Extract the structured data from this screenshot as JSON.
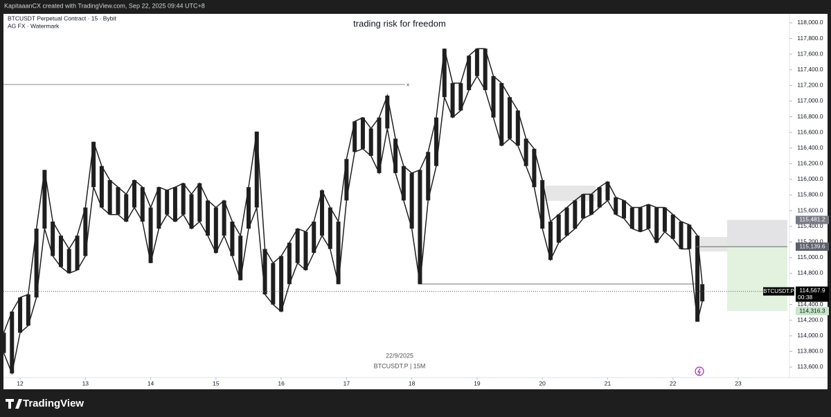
{
  "header": "KapitaaanCX created with TradingView.com, Sep 22, 2025 09:44 UTC+8",
  "footer": {
    "brand": "TradingView"
  },
  "chart_data": {
    "type": "candlestick",
    "title": "trading risk for freedom",
    "symbol": "BTCUSDT Perpetual Contract · 15 · Bybit",
    "indicator": "AG FX · Watermark",
    "watermark_date": "22/9/2025",
    "watermark_symbol": "BTCUSDT.P | 15M",
    "xlim": [
      11.745,
      23.785
    ],
    "xticks": [
      12,
      13,
      14,
      15,
      16,
      17,
      18,
      19,
      20,
      21,
      22,
      23
    ],
    "ylim": [
      113467,
      118115
    ],
    "yticks": [
      {
        "value": 113600,
        "label": "113,600.0"
      },
      {
        "value": 113800,
        "label": "113,800.0"
      },
      {
        "value": 114000,
        "label": "114,000.0"
      },
      {
        "value": 114200,
        "label": "114,200.0"
      },
      {
        "value": 114400,
        "label": "114,400.0"
      },
      {
        "value": 114600,
        "label": "114,600.0"
      },
      {
        "value": 114800,
        "label": "114,800.0"
      },
      {
        "value": 115000,
        "label": "115,000.0"
      },
      {
        "value": 115200,
        "label": "115,200.0"
      },
      {
        "value": 115400,
        "label": "115,400.0"
      },
      {
        "value": 115600,
        "label": "115,600.0"
      },
      {
        "value": 115800,
        "label": "115,800.0"
      },
      {
        "value": 116000,
        "label": "116,000.0"
      },
      {
        "value": 116200,
        "label": "116,200.0"
      },
      {
        "value": 116400,
        "label": "116,400.0"
      },
      {
        "value": 116600,
        "label": "116,600.0"
      },
      {
        "value": 116800,
        "label": "116,800.0"
      },
      {
        "value": 117000,
        "label": "117,000.0"
      },
      {
        "value": 117200,
        "label": "117,200.0"
      },
      {
        "value": 117400,
        "label": "117,400.0"
      },
      {
        "value": 117600,
        "label": "117,600.0"
      },
      {
        "value": 117800,
        "label": "117,800.0"
      },
      {
        "value": 118000,
        "label": "118,000.0"
      }
    ],
    "x": [
      11.75,
      11.875,
      12,
      12.125,
      12.25,
      12.375,
      12.5,
      12.625,
      12.75,
      12.875,
      13,
      13.125,
      13.25,
      13.375,
      13.5,
      13.625,
      13.75,
      13.875,
      14,
      14.125,
      14.25,
      14.375,
      14.5,
      14.625,
      14.75,
      14.875,
      15,
      15.125,
      15.25,
      15.375,
      15.5,
      15.625,
      15.75,
      15.875,
      16,
      16.125,
      16.25,
      16.375,
      16.5,
      16.625,
      16.75,
      16.875,
      17,
      17.125,
      17.25,
      17.375,
      17.5,
      17.625,
      17.75,
      17.875,
      18,
      18.125,
      18.25,
      18.375,
      18.5,
      18.625,
      18.75,
      18.875,
      19,
      19.125,
      19.25,
      19.375,
      19.5,
      19.625,
      19.75,
      19.875,
      20,
      20.125,
      20.25,
      20.375,
      20.5,
      20.625,
      20.75,
      20.875,
      21,
      21.125,
      21.25,
      21.375,
      21.5,
      21.625,
      21.75,
      21.875,
      22,
      22.125,
      22.25,
      22.375,
      22.45
    ],
    "series": [
      {
        "name": "BTCUSDT.P",
        "color": "#1f1f1f",
        "high": [
          114040,
          114310,
          114490,
          114530,
          115370,
          116120,
          115460,
          115280,
          115110,
          115280,
          115640,
          116480,
          116170,
          115990,
          115900,
          115810,
          115990,
          115900,
          115640,
          115900,
          115860,
          115900,
          115950,
          115810,
          115950,
          115730,
          115640,
          115730,
          115460,
          115280,
          115900,
          116610,
          115110,
          114930,
          115020,
          115190,
          115370,
          115330,
          115460,
          115860,
          115640,
          115460,
          116260,
          116740,
          116790,
          116650,
          116790,
          117070,
          116520,
          116170,
          116080,
          116120,
          116350,
          116790,
          117670,
          117230,
          117230,
          117580,
          117670,
          117670,
          117320,
          117230,
          117050,
          116880,
          116520,
          116390,
          115990,
          115460,
          115550,
          115640,
          115730,
          115810,
          115810,
          115900,
          115970,
          115770,
          115730,
          115640,
          115640,
          115680,
          115640,
          115640,
          115550,
          115460,
          115420,
          115280,
          114660
        ],
        "low": [
          113780,
          113520,
          114040,
          114130,
          114490,
          115370,
          115020,
          114880,
          114800,
          114840,
          115020,
          115900,
          115640,
          115550,
          115550,
          115460,
          115640,
          115460,
          114930,
          115370,
          115550,
          115460,
          115550,
          115370,
          115460,
          115280,
          115060,
          115280,
          115020,
          114710,
          115370,
          115640,
          114530,
          114400,
          114310,
          114660,
          114930,
          114840,
          115060,
          115280,
          115110,
          114660,
          115730,
          116350,
          116390,
          116300,
          116080,
          116650,
          116080,
          115730,
          115370,
          114660,
          115730,
          116170,
          117050,
          116790,
          116880,
          117140,
          117320,
          117140,
          116790,
          116430,
          116520,
          116430,
          116170,
          115900,
          115370,
          114970,
          115190,
          115280,
          115370,
          115500,
          115550,
          115640,
          115730,
          115550,
          115500,
          115370,
          115330,
          115370,
          115190,
          115330,
          115240,
          115110,
          115110,
          114180,
          114440
        ]
      }
    ],
    "last_price": {
      "value": 114567.9,
      "label": "114,567.9"
    },
    "symbol_tag": "BTCUSDT.P",
    "countdown": "00:38",
    "position": {
      "stop": {
        "value": 115481.2,
        "label": "115,481.2"
      },
      "entry": {
        "value": 115139.6,
        "label": "115,139.6"
      },
      "target": {
        "value": 114316.3,
        "label": "114,316.3"
      }
    }
  }
}
